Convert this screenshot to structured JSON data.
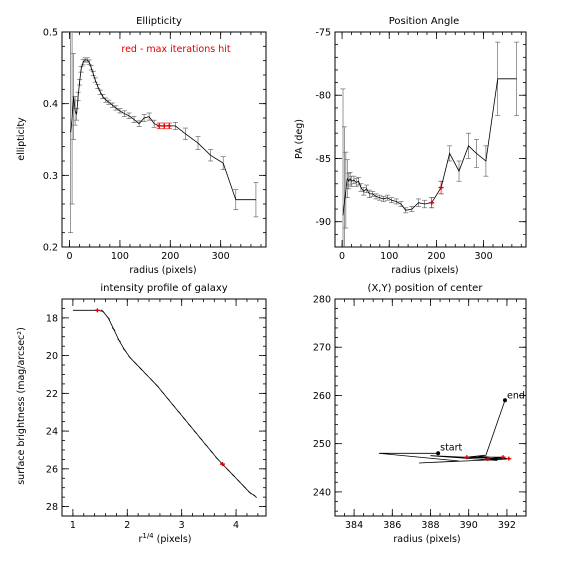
{
  "note": "red - max iterations hit",
  "chart_data": [
    {
      "id": "ellipticity",
      "type": "line",
      "title": "Ellipticity",
      "xlabel": "radius (pixels)",
      "ylabel": "ellipticity",
      "xlim": [
        -15,
        390
      ],
      "ylim": [
        0.2,
        0.5
      ],
      "xticks": [
        0,
        100,
        200,
        300
      ],
      "yticks": [
        0.2,
        0.3,
        0.4,
        0.5
      ],
      "yticklabels": [
        "0.2",
        "0.3",
        "0.4",
        "0.5"
      ],
      "minor_x": 20,
      "minor_y": 0.02,
      "annotation": "red - max iterations hit",
      "x": [
        2,
        5,
        8,
        11,
        14,
        17,
        20,
        23,
        27,
        31,
        35,
        39,
        43,
        47,
        51,
        56,
        61,
        66,
        72,
        78,
        85,
        92,
        100,
        109,
        118,
        128,
        138,
        148,
        158,
        168,
        178,
        188,
        198,
        210,
        230,
        255,
        280,
        305,
        330,
        370
      ],
      "y": [
        0.36,
        0.38,
        0.41,
        0.39,
        0.385,
        0.41,
        0.43,
        0.448,
        0.458,
        0.461,
        0.461,
        0.458,
        0.45,
        0.442,
        0.433,
        0.424,
        0.416,
        0.41,
        0.405,
        0.402,
        0.398,
        0.394,
        0.39,
        0.386,
        0.383,
        0.378,
        0.372,
        0.38,
        0.382,
        0.372,
        0.369,
        0.369,
        0.369,
        0.369,
        0.358,
        0.345,
        0.328,
        0.317,
        0.266,
        0.266
      ],
      "err": [
        0.14,
        0.12,
        0.06,
        0.02,
        0.008,
        0.006,
        0.004,
        0.004,
        0.004,
        0.003,
        0.003,
        0.003,
        0.003,
        0.003,
        0.003,
        0.003,
        0.003,
        0.003,
        0.003,
        0.003,
        0.003,
        0.003,
        0.003,
        0.004,
        0.004,
        0.004,
        0.004,
        0.005,
        0.005,
        0.005,
        0.004,
        0.004,
        0.004,
        0.005,
        0.008,
        0.009,
        0.008,
        0.009,
        0.014,
        0.024
      ],
      "red": [
        30,
        31,
        32
      ]
    },
    {
      "id": "position-angle",
      "type": "line",
      "title": "Position Angle",
      "xlabel": "radius (pixels)",
      "ylabel": "PA (deg)",
      "xlim": [
        -15,
        390
      ],
      "ylim": [
        -92,
        -75
      ],
      "xticks": [
        0,
        100,
        200,
        300
      ],
      "yticks": [
        -90,
        -85,
        -80,
        -75
      ],
      "yticklabels": [
        "-90",
        "-85",
        "-80",
        "-75"
      ],
      "minor_x": 20,
      "minor_y": 1,
      "x": [
        2,
        5,
        8,
        11,
        14,
        17,
        20,
        25,
        30,
        35,
        40,
        46,
        52,
        58,
        65,
        72,
        80,
        88,
        96,
        105,
        115,
        125,
        135,
        148,
        162,
        175,
        190,
        210,
        228,
        248,
        268,
        285,
        305,
        330,
        370
      ],
      "y": [
        -89.5,
        -88.5,
        -87.5,
        -86.6,
        -86.8,
        -86.6,
        -86.8,
        -86.7,
        -86.9,
        -86.8,
        -87.3,
        -87.6,
        -87.4,
        -87.8,
        -87.8,
        -88.0,
        -88.1,
        -88.2,
        -88.1,
        -88.3,
        -88.4,
        -88.6,
        -89.1,
        -89.0,
        -88.5,
        -88.6,
        -88.5,
        -87.3,
        -84.6,
        -86.0,
        -84.0,
        -84.6,
        -85.2,
        -78.7,
        -78.7
      ],
      "err": [
        10,
        6,
        3,
        1.5,
        0.6,
        0.5,
        0.4,
        0.3,
        0.3,
        0.3,
        0.3,
        0.3,
        0.3,
        0.3,
        0.2,
        0.2,
        0.2,
        0.2,
        0.2,
        0.2,
        0.2,
        0.2,
        0.2,
        0.2,
        0.3,
        0.3,
        0.4,
        0.5,
        0.6,
        0.8,
        1.0,
        1.1,
        1.2,
        2.9,
        2.9
      ],
      "red": [
        26,
        27
      ]
    },
    {
      "id": "intensity-profile",
      "type": "line",
      "title": "intensity profile of galaxy",
      "xlabel": "r",
      "xlabel_sup": "1/4",
      "xlabel_rest": " (pixels)",
      "ylabel": "surface brightness (mag/arcsec²)",
      "xlim": [
        0.8,
        4.55
      ],
      "ylim": [
        28.5,
        17.0
      ],
      "xticks": [
        1,
        2,
        3,
        4
      ],
      "yticks": [
        18,
        20,
        22,
        24,
        26,
        28
      ],
      "yticklabels": [
        "18",
        "20",
        "22",
        "24",
        "26",
        "28"
      ],
      "minor_x": 0.2,
      "minor_y": 0.5,
      "x": [
        1.0,
        1.25,
        1.45,
        1.55,
        1.65,
        1.75,
        1.85,
        1.95,
        2.05,
        2.15,
        2.25,
        2.35,
        2.45,
        2.55,
        2.65,
        2.75,
        2.85,
        2.95,
        3.05,
        3.15,
        3.25,
        3.35,
        3.45,
        3.55,
        3.65,
        3.75,
        3.85,
        3.95,
        4.05,
        4.15,
        4.25,
        4.35
      ],
      "y": [
        17.6,
        17.6,
        17.6,
        17.65,
        18.0,
        18.6,
        19.2,
        19.7,
        20.1,
        20.4,
        20.7,
        21.0,
        21.3,
        21.6,
        21.95,
        22.3,
        22.65,
        23.0,
        23.35,
        23.7,
        24.05,
        24.4,
        24.75,
        25.1,
        25.45,
        25.75,
        26.05,
        26.35,
        26.65,
        26.95,
        27.25,
        27.45
      ],
      "red": [
        2,
        25
      ]
    },
    {
      "id": "center-position",
      "type": "line",
      "title": "(X,Y) position of center",
      "xlabel": "radius (pixels)",
      "ylabel": "",
      "xlim": [
        383.0,
        393.0
      ],
      "ylim": [
        235,
        280
      ],
      "xticks": [
        384,
        386,
        388,
        390,
        392
      ],
      "yticks": [
        240,
        250,
        260,
        270,
        280
      ],
      "yticklabels": [
        "240",
        "250",
        "260",
        "270",
        "280"
      ],
      "minor_x": 0.5,
      "minor_y": 2,
      "start_label": "start",
      "end_label": "end",
      "x": [
        388.4,
        385.3,
        389.5,
        387.4,
        392.0,
        388.0,
        391.5,
        390.5,
        392.1,
        391.0,
        391.8,
        389.9,
        390.9,
        391.9
      ],
      "y": [
        248.0,
        248.0,
        246.4,
        246.0,
        246.8,
        247.5,
        246.5,
        247.4,
        246.9,
        246.8,
        247.2,
        247.2,
        247.6,
        259.0
      ],
      "red": [
        8,
        9,
        10,
        11
      ]
    }
  ]
}
